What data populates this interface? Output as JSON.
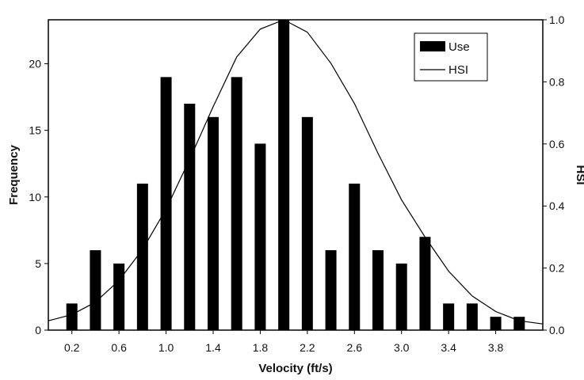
{
  "chart_data": {
    "type": "bar",
    "xlabel": "Velocity (ft/s)",
    "ylabel": "Frequency",
    "y2label": "HSI",
    "x_tick_labels": [
      "0.2",
      "0.6",
      "1.0",
      "1.4",
      "1.8",
      "2.2",
      "2.6",
      "3.0",
      "3.4",
      "3.8"
    ],
    "x_tick_values": [
      0.2,
      0.6,
      1.0,
      1.4,
      1.8,
      2.2,
      2.6,
      3.0,
      3.4,
      3.8
    ],
    "xlim": [
      0.0,
      4.2
    ],
    "ylim": [
      0,
      23.3
    ],
    "y_ticks": [
      0,
      5,
      10,
      15,
      20
    ],
    "y2lim": [
      0.0,
      1.0
    ],
    "y2_ticks": [
      0.0,
      0.2,
      0.4,
      0.6,
      0.8,
      1.0
    ],
    "y2_tick_labels": [
      "0.0",
      "0.2",
      "0.4",
      "0.6",
      "0.8",
      "1.0"
    ],
    "legend_position": "top-right",
    "grid": false,
    "series": [
      {
        "name": "Use",
        "kind": "bar",
        "color": "#000000",
        "x": [
          0.2,
          0.4,
          0.6,
          0.8,
          1.0,
          1.2,
          1.4,
          1.6,
          1.8,
          2.0,
          2.2,
          2.4,
          2.6,
          2.8,
          3.0,
          3.2,
          3.4,
          3.6,
          3.8,
          4.0
        ],
        "values": [
          2,
          6,
          5,
          11,
          19,
          17,
          16,
          19,
          14,
          23.3,
          16,
          6,
          11,
          6,
          5,
          7,
          2,
          2,
          1,
          1
        ]
      },
      {
        "name": "HSI",
        "kind": "line",
        "color": "#000000",
        "axis": "right",
        "x": [
          0.0,
          0.2,
          0.4,
          0.6,
          0.8,
          1.0,
          1.2,
          1.4,
          1.6,
          1.8,
          2.0,
          2.2,
          2.4,
          2.6,
          2.8,
          3.0,
          3.2,
          3.4,
          3.6,
          3.8,
          4.0,
          4.2
        ],
        "values": [
          0.03,
          0.05,
          0.09,
          0.16,
          0.26,
          0.39,
          0.55,
          0.72,
          0.88,
          0.97,
          1.0,
          0.96,
          0.86,
          0.73,
          0.57,
          0.42,
          0.3,
          0.19,
          0.11,
          0.06,
          0.03,
          0.02
        ]
      }
    ]
  }
}
